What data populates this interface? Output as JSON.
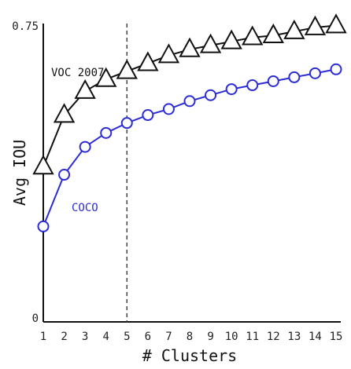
{
  "chart_data": {
    "type": "line",
    "xlabel": "# Clusters",
    "ylabel": "Avg IOU",
    "x": [
      1,
      2,
      3,
      4,
      5,
      6,
      7,
      8,
      9,
      10,
      11,
      12,
      13,
      14,
      15
    ],
    "xticks": [
      "1",
      "2",
      "3",
      "4",
      "5",
      "6",
      "7",
      "8",
      "9",
      "10",
      "11",
      "12",
      "13",
      "14",
      "15"
    ],
    "ylim": [
      0,
      0.75
    ],
    "yticks": [
      "0",
      "0.75"
    ],
    "grid": false,
    "vline": {
      "x": 5,
      "style": "dashed"
    },
    "series": [
      {
        "name": "VOC 2007",
        "color": "#111111",
        "marker": "triangle",
        "values": [
          0.39,
          0.52,
          0.58,
          0.61,
          0.63,
          0.65,
          0.67,
          0.685,
          0.695,
          0.705,
          0.715,
          0.72,
          0.73,
          0.74,
          0.745
        ]
      },
      {
        "name": "COCO",
        "color": "#2c2cd6",
        "marker": "circle",
        "values": [
          0.24,
          0.37,
          0.44,
          0.475,
          0.5,
          0.52,
          0.535,
          0.555,
          0.57,
          0.585,
          0.595,
          0.605,
          0.615,
          0.625,
          0.635
        ]
      }
    ]
  }
}
